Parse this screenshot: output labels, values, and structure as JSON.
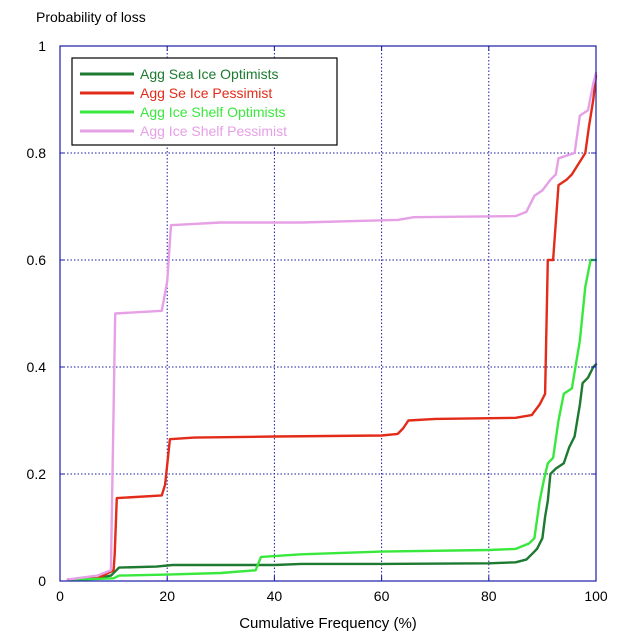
{
  "chart_data": {
    "type": "line",
    "ylabel": "Probability of loss",
    "xlabel": "Cumulative Frequency (%)",
    "xlim": [
      0,
      100
    ],
    "ylim": [
      0,
      1
    ],
    "xticks": [
      0,
      20,
      40,
      60,
      80,
      100
    ],
    "xtick_labels": [
      "0",
      "20",
      "40",
      "60",
      "80",
      "100"
    ],
    "yticks": [
      0,
      0.2,
      0.4,
      0.6,
      0.8,
      1
    ],
    "ytick_labels": [
      "0",
      "0.2",
      "0.4",
      "0.6",
      "0.8",
      "1"
    ],
    "grid": true,
    "grid_style": "dotted",
    "legend_position": "top-left",
    "axis_color": "#1a1aa6",
    "grid_color": "#1a1aa6",
    "series": [
      {
        "name": "Agg Sea Ice Optimists",
        "color": "#1d7a30",
        "points": [
          [
            1.5,
            0.003
          ],
          [
            7,
            0.005
          ],
          [
            9.5,
            0.01
          ],
          [
            10.5,
            0.02
          ],
          [
            11,
            0.025
          ],
          [
            18,
            0.027
          ],
          [
            21,
            0.03
          ],
          [
            40,
            0.03
          ],
          [
            45,
            0.032
          ],
          [
            60,
            0.032
          ],
          [
            80,
            0.033
          ],
          [
            85,
            0.035
          ],
          [
            87,
            0.04
          ],
          [
            88,
            0.05
          ],
          [
            89,
            0.06
          ],
          [
            90,
            0.08
          ],
          [
            90.5,
            0.12
          ],
          [
            91,
            0.15
          ],
          [
            91.5,
            0.2
          ],
          [
            92.5,
            0.21
          ],
          [
            94,
            0.22
          ],
          [
            95,
            0.25
          ],
          [
            96,
            0.27
          ],
          [
            97,
            0.33
          ],
          [
            97.5,
            0.37
          ],
          [
            98.5,
            0.38
          ],
          [
            99.5,
            0.4
          ],
          [
            100,
            0.405
          ]
        ]
      },
      {
        "name": "Agg Se Ice Pessimist",
        "color": "#e22b18",
        "points": [
          [
            1.5,
            0.003
          ],
          [
            7,
            0.005
          ],
          [
            10,
            0.02
          ],
          [
            10.2,
            0.05
          ],
          [
            10.6,
            0.155
          ],
          [
            19,
            0.16
          ],
          [
            19.6,
            0.18
          ],
          [
            20.5,
            0.265
          ],
          [
            25,
            0.268
          ],
          [
            40,
            0.27
          ],
          [
            60,
            0.272
          ],
          [
            63,
            0.275
          ],
          [
            64,
            0.285
          ],
          [
            65,
            0.3
          ],
          [
            70,
            0.303
          ],
          [
            85,
            0.305
          ],
          [
            88,
            0.31
          ],
          [
            89.5,
            0.33
          ],
          [
            90.5,
            0.35
          ],
          [
            91,
            0.6
          ],
          [
            92,
            0.6
          ],
          [
            93,
            0.74
          ],
          [
            94.5,
            0.75
          ],
          [
            95.5,
            0.76
          ],
          [
            98,
            0.8
          ],
          [
            98.7,
            0.85
          ],
          [
            99.5,
            0.9
          ],
          [
            100,
            0.945
          ]
        ]
      },
      {
        "name": "Agg Ice Shelf Optimists",
        "color": "#39e83c",
        "points": [
          [
            1.5,
            0.002
          ],
          [
            10,
            0.005
          ],
          [
            11,
            0.01
          ],
          [
            20,
            0.012
          ],
          [
            30,
            0.015
          ],
          [
            36.5,
            0.02
          ],
          [
            37.5,
            0.045
          ],
          [
            45,
            0.05
          ],
          [
            60,
            0.055
          ],
          [
            80,
            0.058
          ],
          [
            85,
            0.06
          ],
          [
            87.5,
            0.07
          ],
          [
            88.5,
            0.08
          ],
          [
            89.5,
            0.15
          ],
          [
            90.3,
            0.19
          ],
          [
            91,
            0.22
          ],
          [
            92,
            0.23
          ],
          [
            93,
            0.3
          ],
          [
            94,
            0.35
          ],
          [
            95.5,
            0.36
          ],
          [
            97,
            0.45
          ],
          [
            98,
            0.55
          ],
          [
            99,
            0.6
          ],
          [
            100,
            0.6
          ]
        ]
      },
      {
        "name": "Agg Ice Shelf Pessimist",
        "color": "#e6a0e6",
        "points": [
          [
            1.5,
            0.003
          ],
          [
            7,
            0.01
          ],
          [
            9.5,
            0.02
          ],
          [
            10.3,
            0.5
          ],
          [
            19,
            0.505
          ],
          [
            20,
            0.56
          ],
          [
            20.7,
            0.665
          ],
          [
            30,
            0.67
          ],
          [
            45,
            0.67
          ],
          [
            63,
            0.675
          ],
          [
            66,
            0.68
          ],
          [
            85,
            0.682
          ],
          [
            87,
            0.69
          ],
          [
            88.5,
            0.72
          ],
          [
            90,
            0.73
          ],
          [
            91.5,
            0.75
          ],
          [
            92.5,
            0.76
          ],
          [
            93,
            0.79
          ],
          [
            96,
            0.8
          ],
          [
            97,
            0.87
          ],
          [
            98.5,
            0.88
          ],
          [
            99.5,
            0.93
          ],
          [
            100,
            0.95
          ]
        ]
      }
    ]
  }
}
